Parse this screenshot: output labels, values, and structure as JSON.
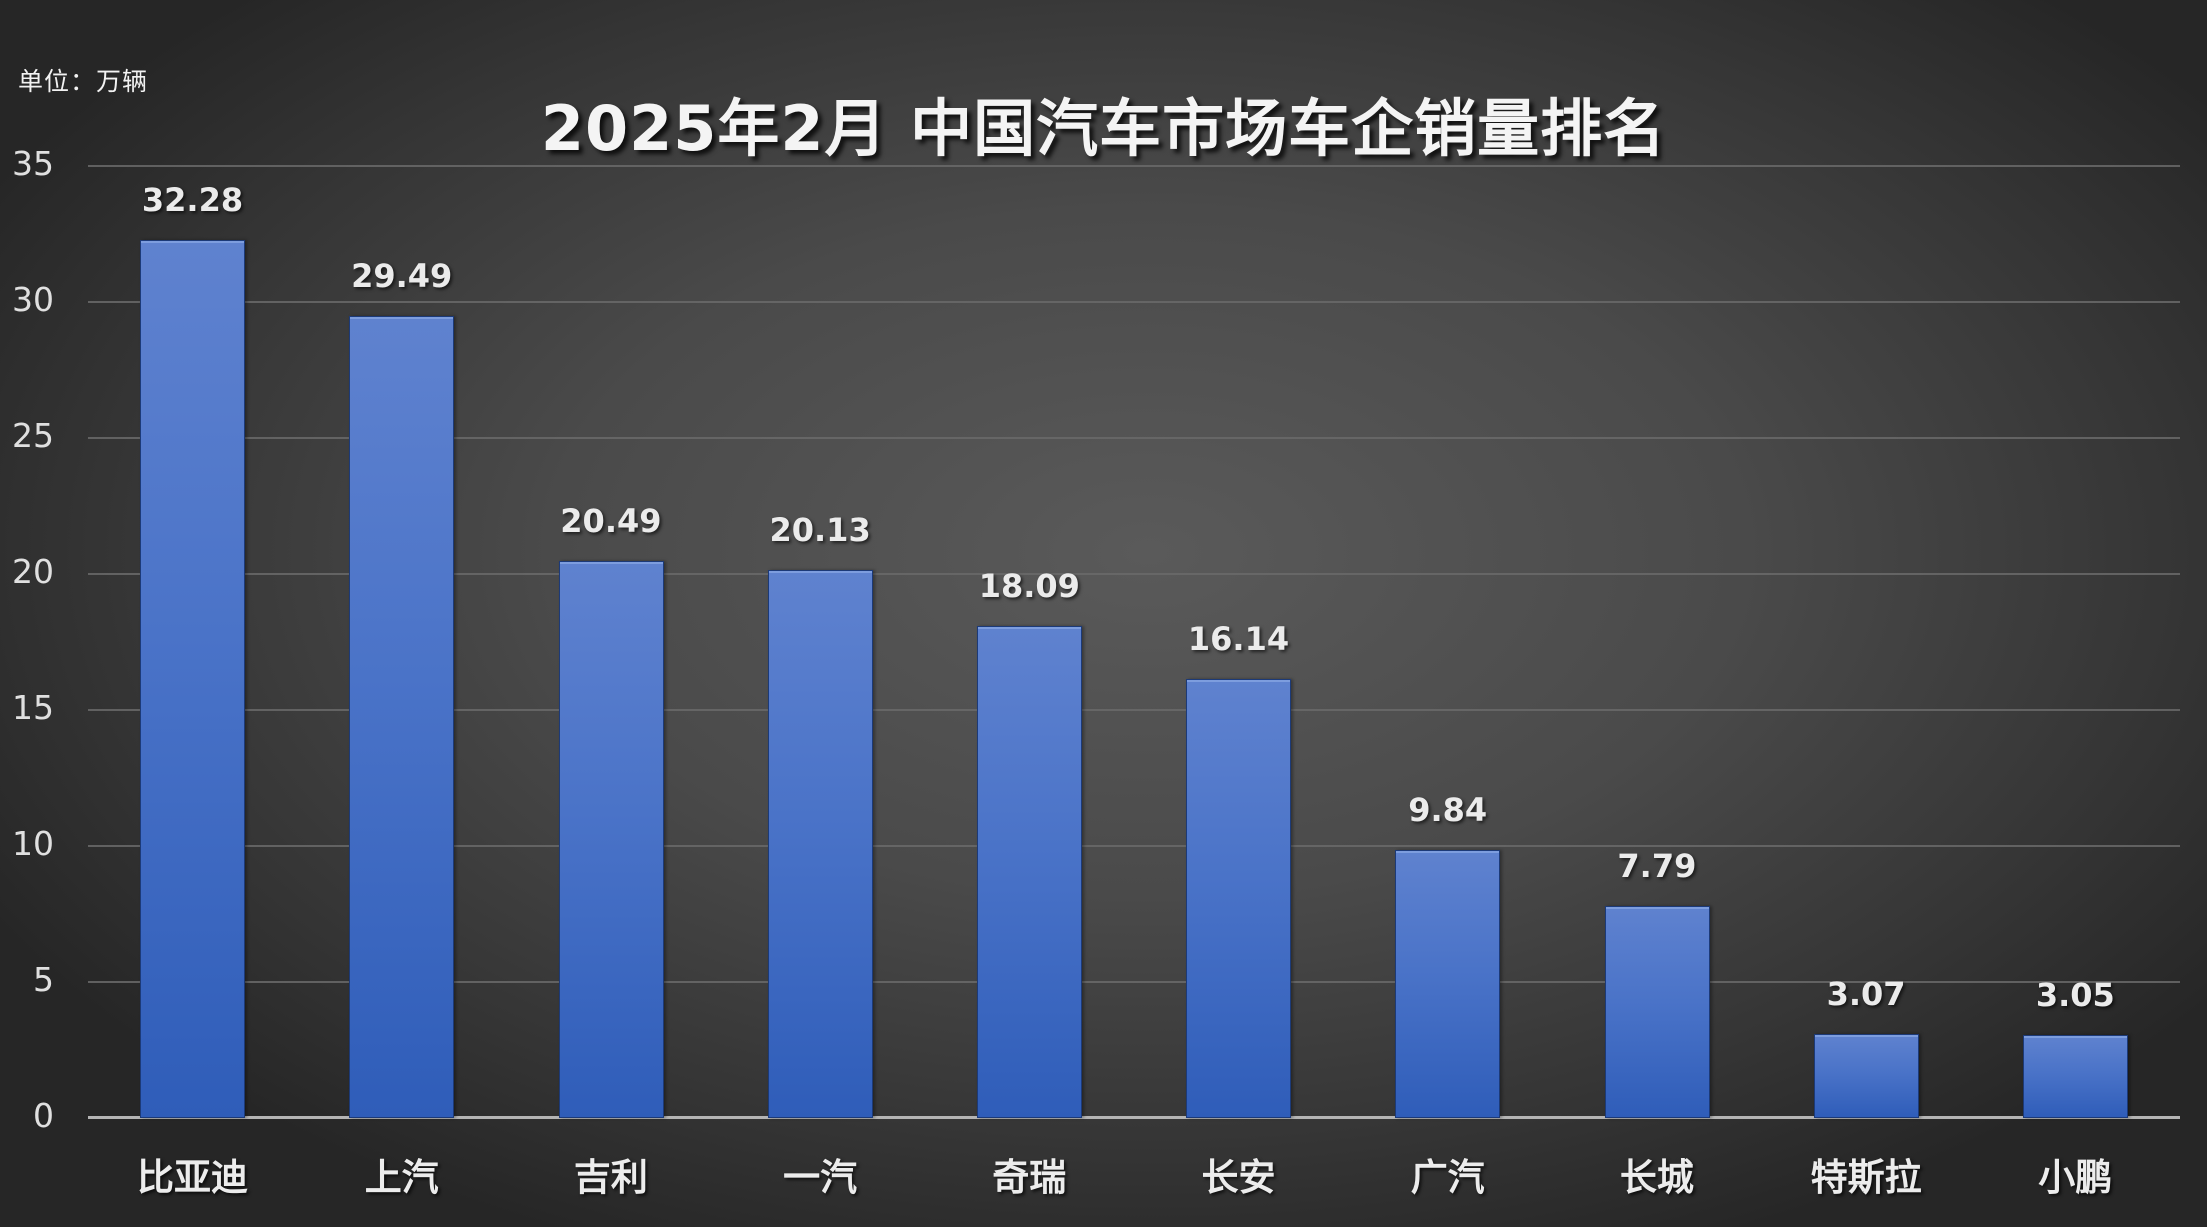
{
  "unit_label": "单位：万辆",
  "title": "2025年2月 中国汽车市场车企销量排名",
  "y_axis": {
    "ticks": [
      "0",
      "5",
      "10",
      "15",
      "20",
      "25",
      "30",
      "35"
    ]
  },
  "colors": {
    "bar_top": "#5f82cf",
    "bar_bottom": "#2f5db9",
    "background_center": "#5a5a5a",
    "background_edge": "#262626",
    "gridline": "#6a6a6a",
    "text": "#e6e6e6"
  },
  "bars": [
    {
      "label": "比亚迪",
      "value": "32.28"
    },
    {
      "label": "上汽",
      "value": "29.49"
    },
    {
      "label": "吉利",
      "value": "20.49"
    },
    {
      "label": "一汽",
      "value": "20.13"
    },
    {
      "label": "奇瑞",
      "value": "18.09"
    },
    {
      "label": "长安",
      "value": "16.14"
    },
    {
      "label": "广汽",
      "value": "9.84"
    },
    {
      "label": "长城",
      "value": "7.79"
    },
    {
      "label": "特斯拉",
      "value": "3.07"
    },
    {
      "label": "小鹏",
      "value": "3.05"
    }
  ],
  "chart_data": {
    "type": "bar",
    "title": "2025年2月 中国汽车市场车企销量排名",
    "categories": [
      "比亚迪",
      "上汽",
      "吉利",
      "一汽",
      "奇瑞",
      "长安",
      "广汽",
      "长城",
      "特斯拉",
      "小鹏"
    ],
    "values": [
      32.28,
      29.49,
      20.49,
      20.13,
      18.09,
      16.14,
      9.84,
      7.79,
      3.07,
      3.05
    ],
    "xlabel": "",
    "ylabel": "单位：万辆",
    "ylim": [
      0,
      35
    ],
    "yticks": [
      0,
      5,
      10,
      15,
      20,
      25,
      30,
      35
    ],
    "grid": true,
    "legend": null,
    "data_labels": true
  }
}
